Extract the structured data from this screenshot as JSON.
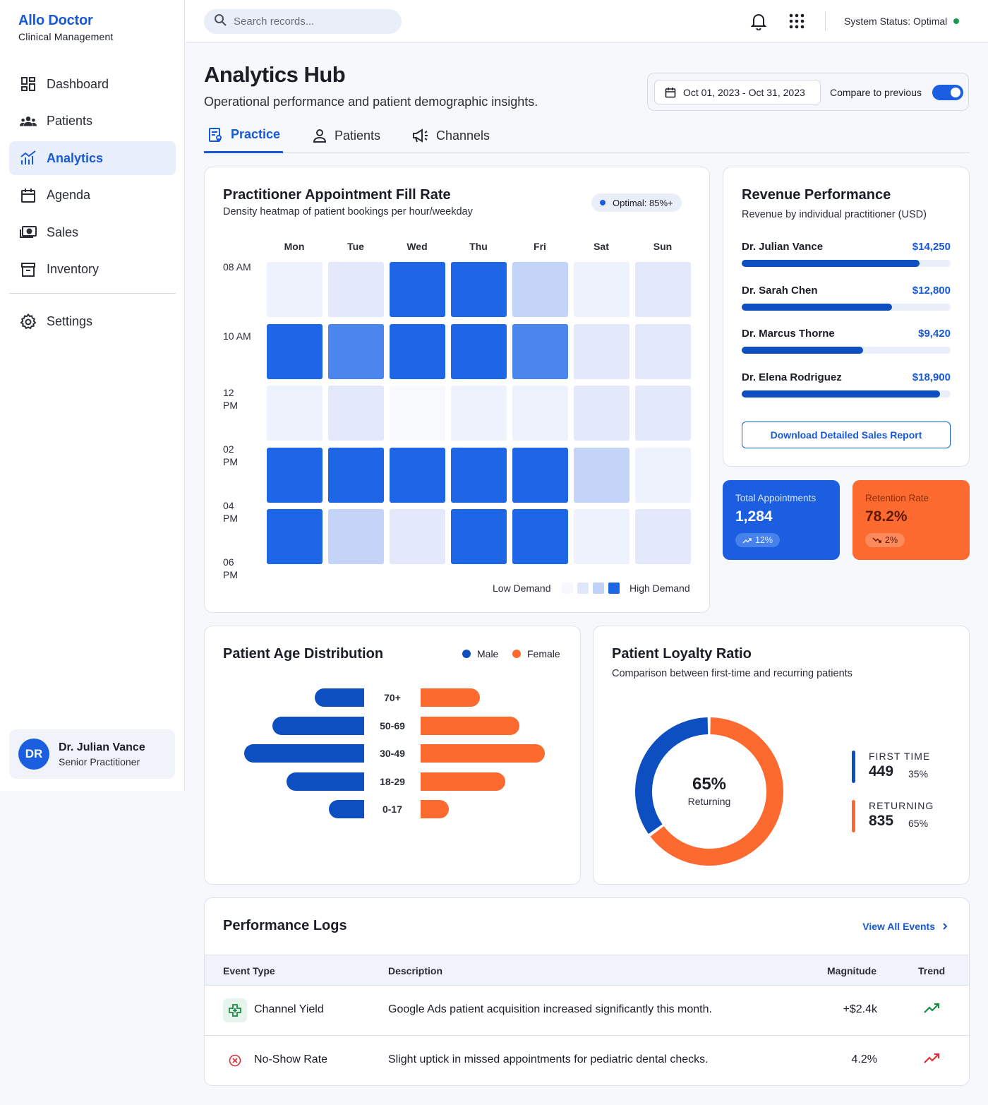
{
  "brand": {
    "title": "Allo Doctor",
    "subtitle": "Clinical Management"
  },
  "nav": {
    "items": [
      {
        "label": "Dashboard",
        "icon": "dashboard-icon"
      },
      {
        "label": "Patients",
        "icon": "users-icon"
      },
      {
        "label": "Analytics",
        "icon": "analytics-icon",
        "active": true
      },
      {
        "label": "Agenda",
        "icon": "calendar-icon"
      },
      {
        "label": "Sales",
        "icon": "cash-icon"
      },
      {
        "label": "Inventory",
        "icon": "archive-icon"
      }
    ],
    "settings_label": "Settings"
  },
  "user": {
    "initials": "DR",
    "name": "Dr. Julian Vance",
    "role": "Senior Practitioner"
  },
  "topbar": {
    "search_placeholder": "Search records...",
    "system_status": "System Status: Optimal",
    "status_color": "#1a9a4f"
  },
  "header": {
    "title": "Analytics Hub",
    "subtitle": "Operational performance and patient demographic insights.",
    "date_range": "Oct 01, 2023 - Oct 31, 2023",
    "compare_label": "Compare to previous",
    "compare_on": true
  },
  "tabs": [
    {
      "label": "Practice",
      "active": true
    },
    {
      "label": "Patients"
    },
    {
      "label": "Channels"
    }
  ],
  "heatmap": {
    "title": "Practitioner Appointment Fill Rate",
    "subtitle": "Density heatmap of patient bookings per hour/weekday",
    "badge": "Optimal: 85%+",
    "days": [
      "Mon",
      "Tue",
      "Wed",
      "Thu",
      "Fri",
      "Sat",
      "Sun"
    ],
    "hours": [
      "08 AM",
      "10 AM",
      "12 PM",
      "02 PM",
      "04 PM",
      "06 PM"
    ],
    "levels": [
      [
        1,
        2,
        5,
        5,
        3,
        1,
        2
      ],
      [
        5,
        4,
        5,
        5,
        4,
        2,
        2
      ],
      [
        1,
        2,
        0,
        1,
        1,
        2,
        2
      ],
      [
        5,
        5,
        5,
        5,
        5,
        3,
        1
      ],
      [
        5,
        3,
        2,
        5,
        5,
        1,
        2
      ]
    ],
    "legend_low": "Low Demand",
    "legend_high": "High Demand"
  },
  "revenue": {
    "title": "Revenue Performance",
    "subtitle": "Revenue by individual practitioner (USD)",
    "practitioners": [
      {
        "name": "Dr. Julian Vance",
        "value": "$14,250",
        "fraction": 0.85
      },
      {
        "name": "Dr. Sarah Chen",
        "value": "$12,800",
        "fraction": 0.72
      },
      {
        "name": "Dr. Marcus Thorne",
        "value": "$9,420",
        "fraction": 0.58
      },
      {
        "name": "Dr. Elena Rodriguez",
        "value": "$18,900",
        "fraction": 0.95
      }
    ],
    "download_label": "Download Detailed Sales Report"
  },
  "stats": {
    "appointments": {
      "label": "Total Appointments",
      "value": "1,284",
      "change": "12%"
    },
    "retention": {
      "label": "Retention Rate",
      "value": "78.2%",
      "change": "2%"
    }
  },
  "age_distribution": {
    "title": "Patient Age Distribution",
    "legend_male": "Male",
    "legend_female": "Female",
    "colors": {
      "male": "#0d4fc1",
      "female": "#fc6a2f"
    },
    "groups": [
      {
        "label": "70+",
        "male": 70,
        "female": 84
      },
      {
        "label": "50-69",
        "male": 130,
        "female": 140
      },
      {
        "label": "30-49",
        "male": 170,
        "female": 176
      },
      {
        "label": "18-29",
        "male": 110,
        "female": 120
      },
      {
        "label": "0-17",
        "male": 50,
        "female": 40
      }
    ]
  },
  "loyalty": {
    "title": "Patient Loyalty Ratio",
    "subtitle": "Comparison between first-time and recurring patients",
    "center_pct": "65%",
    "center_label": "Returning",
    "segments": [
      {
        "title": "FIRST TIME",
        "value": "449",
        "pct": "35%",
        "fraction": 0.35,
        "color": "#0d4fc1"
      },
      {
        "title": "RETURNING",
        "value": "835",
        "pct": "65%",
        "fraction": 0.65,
        "color": "#fc6a2f"
      }
    ]
  },
  "logs": {
    "title": "Performance Logs",
    "view_all": "View All Events",
    "columns": [
      "Event Type",
      "Description",
      "Magnitude",
      "Trend"
    ],
    "rows": [
      {
        "event": "Channel Yield",
        "icon": "plus-cross-icon",
        "description": "Google Ads patient acquisition increased significantly this month.",
        "magnitude": "+$2.4k",
        "trend_color": "#1a8a47"
      },
      {
        "event": "No-Show Rate",
        "icon": "x-circle-icon",
        "description": "Slight uptick in missed appointments for pediatric dental checks.",
        "magnitude": "4.2%",
        "trend_color": "#d8323c"
      }
    ]
  }
}
